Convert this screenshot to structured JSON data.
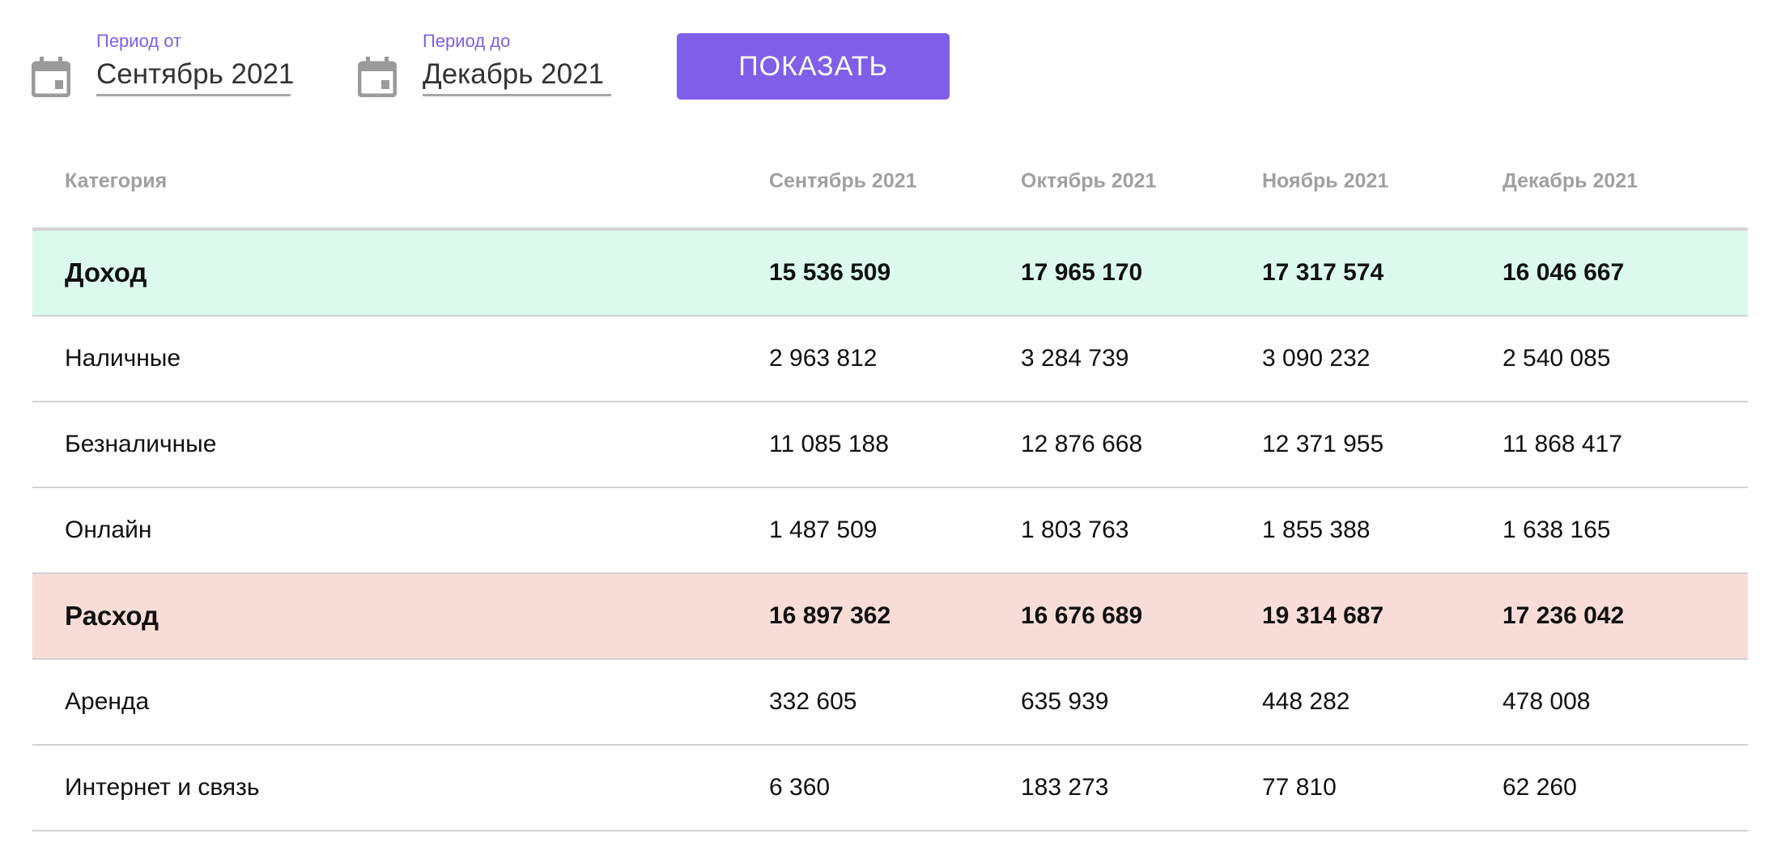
{
  "filters": {
    "from": {
      "label": "Период от",
      "value": "Сентябрь 2021",
      "icon": "calendar-icon"
    },
    "to": {
      "label": "Период до",
      "value": "Декабрь 2021",
      "icon": "calendar-icon"
    },
    "show_button": "ПОКАЗАТЬ"
  },
  "colors": {
    "accent": "#7f5fe8",
    "income_row": "#dcf9ee",
    "expense_row": "#f8dcd7"
  },
  "table": {
    "headers": [
      "Категория",
      "Сентябрь 2021",
      "Октябрь 2021",
      "Ноябрь 2021",
      "Декабрь 2021"
    ],
    "rows": [
      {
        "type": "income",
        "cells": [
          "Доход",
          "15 536 509",
          "17 965 170",
          "17 317 574",
          "16 046 667"
        ]
      },
      {
        "type": "item",
        "cells": [
          "Наличные",
          "2 963 812",
          "3 284 739",
          "3 090 232",
          "2 540 085"
        ]
      },
      {
        "type": "item",
        "cells": [
          "Безналичные",
          "11 085 188",
          "12 876 668",
          "12 371 955",
          "11 868 417"
        ]
      },
      {
        "type": "item",
        "cells": [
          "Онлайн",
          "1 487 509",
          "1 803 763",
          "1 855 388",
          "1 638 165"
        ]
      },
      {
        "type": "expense",
        "cells": [
          "Расход",
          "16 897 362",
          "16 676 689",
          "19 314 687",
          "17 236 042"
        ]
      },
      {
        "type": "item",
        "cells": [
          "Аренда",
          "332 605",
          "635 939",
          "448 282",
          "478 008"
        ]
      },
      {
        "type": "item",
        "cells": [
          "Интернет и связь",
          "6 360",
          "183 273",
          "77 810",
          "62 260"
        ]
      }
    ]
  }
}
